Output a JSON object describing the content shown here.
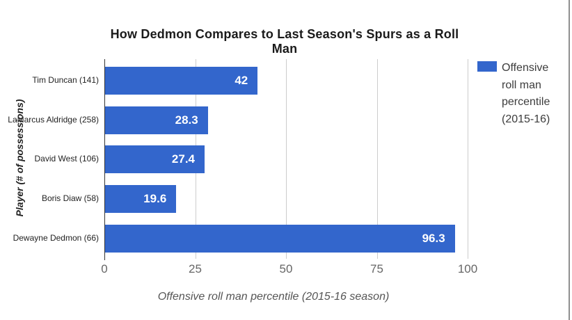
{
  "window": {
    "right_edge_color": "#8f8f8f",
    "background": "#ffffff"
  },
  "chart_data": {
    "type": "bar",
    "orientation": "horizontal",
    "title": "How Dedmon Compares to Last Season's Spurs as a Roll Man",
    "categories": [
      "Tim Duncan (141)",
      "LaMarcus Aldridge (258)",
      "David West (106)",
      "Boris Diaw (58)",
      "Dewayne Dedmon (66)"
    ],
    "values": [
      42,
      28.3,
      27.4,
      19.6,
      96.3
    ],
    "value_labels": [
      "42",
      "28.3",
      "27.4",
      "19.6",
      "96.3"
    ],
    "xlabel": "Offensive roll man percentile (2015-16 season)",
    "ylabel": "Player (# of possessions)",
    "xlim": [
      0,
      100
    ],
    "xticks": [
      0,
      25,
      50,
      75,
      100
    ],
    "grid": true,
    "legend": {
      "position": "right",
      "label": "Offensive roll man percentile (2015-16)",
      "lines": [
        "Offensive",
        "roll man",
        "percentile",
        "(2015-16)"
      ],
      "swatch_color": "#3366cc"
    },
    "colors": {
      "bar": "#3366cc",
      "gridline": "#cccccc",
      "axis_line": "#333333",
      "value_label": "#ffffff",
      "tick_label": "#666666",
      "category_label": "#222222",
      "title": "#1a1a1a",
      "axis_title_x": "#555555",
      "axis_title_y": "#222222",
      "legend_text": "#3c3c3c"
    }
  }
}
